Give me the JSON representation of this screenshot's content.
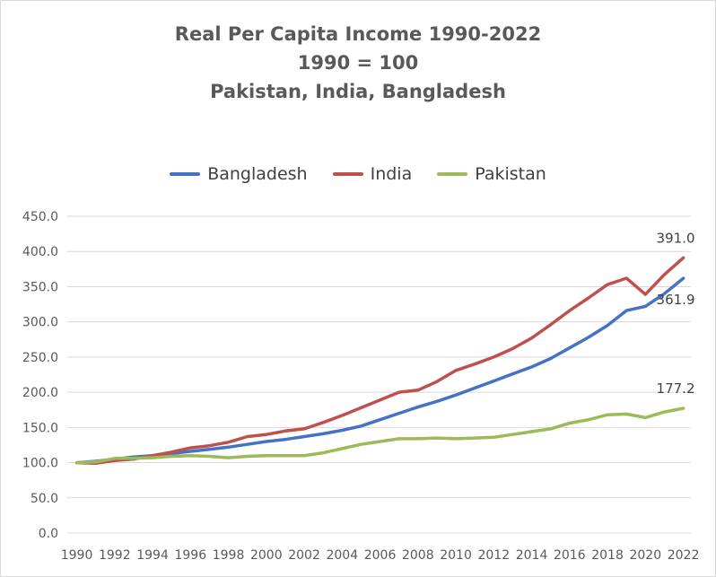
{
  "chart_data": {
    "type": "line",
    "title": "Real Per Capita Income 1990-2022",
    "subtitle_lines": [
      "1990 = 100",
      "Pakistan, India, Bangladesh"
    ],
    "xlabel": "",
    "ylabel": "",
    "ylim": [
      0,
      450
    ],
    "yticks": [
      "0.0",
      "50.0",
      "100.0",
      "150.0",
      "200.0",
      "250.0",
      "300.0",
      "350.0",
      "400.0",
      "450.0"
    ],
    "xticks": [
      "1990",
      "1992",
      "1994",
      "1996",
      "1998",
      "2000",
      "2002",
      "2004",
      "2006",
      "2008",
      "2010",
      "2012",
      "2014",
      "2016",
      "2018",
      "2020",
      "2022"
    ],
    "grid": "horizontal",
    "legend_position": "top",
    "x": [
      1990,
      1991,
      1992,
      1993,
      1994,
      1995,
      1996,
      1997,
      1998,
      1999,
      2000,
      2001,
      2002,
      2003,
      2004,
      2005,
      2006,
      2007,
      2008,
      2009,
      2010,
      2011,
      2012,
      2013,
      2014,
      2015,
      2016,
      2017,
      2018,
      2019,
      2020,
      2021,
      2022
    ],
    "series": [
      {
        "name": "Bangladesh",
        "color": "#4472c4",
        "values": [
          100,
          102,
          105,
          108,
          110,
          113,
          116,
          119,
          122,
          126,
          130,
          133,
          137,
          141,
          146,
          152,
          161,
          170,
          179,
          187,
          196,
          206,
          216,
          226,
          236,
          248,
          263,
          278,
          295,
          316,
          322,
          340,
          361.9
        ],
        "end_label": "361.9"
      },
      {
        "name": "India",
        "color": "#c0504d",
        "values": [
          100,
          99,
          103,
          105,
          110,
          115,
          121,
          124,
          129,
          137,
          140,
          145,
          148,
          157,
          167,
          178,
          189,
          200,
          203,
          215,
          231,
          240,
          250,
          262,
          277,
          296,
          316,
          334,
          353,
          362,
          339,
          367,
          391.0
        ],
        "end_label": "391.0"
      },
      {
        "name": "Pakistan",
        "color": "#9bbb59",
        "values": [
          100,
          101,
          106,
          106,
          107,
          109,
          110,
          109,
          107,
          109,
          110,
          110,
          110,
          114,
          120,
          126,
          130,
          134,
          134,
          135,
          134,
          135,
          136,
          140,
          144,
          148,
          156,
          161,
          168,
          169,
          164,
          172,
          177.2
        ],
        "end_label": "177.2"
      }
    ]
  }
}
